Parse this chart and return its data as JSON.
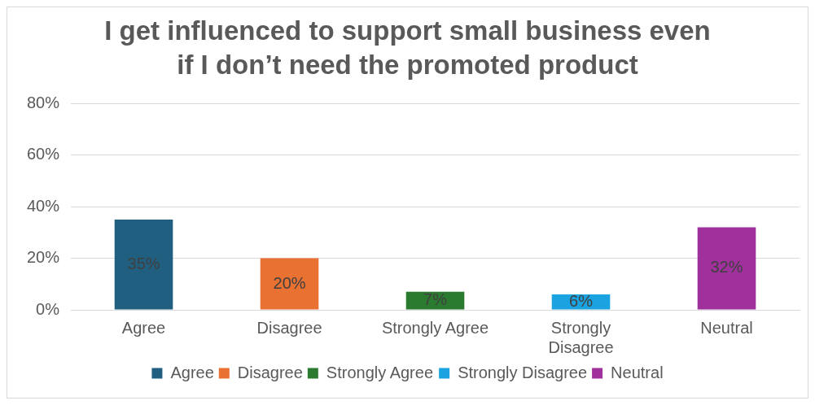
{
  "chart_data": {
    "type": "bar",
    "title": "I get influenced to support small business even if I don’t need the promoted product",
    "categories": [
      "Agree",
      "Disagree",
      "Strongly Agree",
      "Strongly Disagree",
      "Neutral"
    ],
    "stacked": true,
    "series": [
      {
        "name": "Agree",
        "color": "#215f80",
        "values": [
          35,
          null,
          null,
          null,
          null
        ],
        "value_labels": [
          "35%",
          null,
          null,
          null,
          null
        ]
      },
      {
        "name": "Disagree",
        "color": "#e97132",
        "values": [
          null,
          20,
          null,
          null,
          null
        ],
        "value_labels": [
          null,
          "20%",
          null,
          null,
          null
        ]
      },
      {
        "name": "Strongly Agree",
        "color": "#2a7a2f",
        "values": [
          null,
          null,
          7,
          null,
          null
        ],
        "value_labels": [
          null,
          null,
          "7%",
          null,
          null
        ]
      },
      {
        "name": "Strongly Disagree",
        "color": "#1aa3e0",
        "values": [
          null,
          null,
          null,
          6,
          null
        ],
        "value_labels": [
          null,
          null,
          null,
          "6%",
          null
        ]
      },
      {
        "name": "Neutral",
        "color": "#a0309c",
        "values": [
          null,
          null,
          null,
          null,
          32
        ],
        "value_labels": [
          null,
          null,
          null,
          null,
          "32%"
        ]
      }
    ],
    "ylim": [
      0,
      80
    ],
    "yticks": [
      {
        "value": 0,
        "label": "0%"
      },
      {
        "value": 20,
        "label": "20%"
      },
      {
        "value": 40,
        "label": "40%"
      },
      {
        "value": 60,
        "label": "60%"
      },
      {
        "value": 80,
        "label": "80%"
      }
    ],
    "grid": "y",
    "legend": "bottom"
  }
}
